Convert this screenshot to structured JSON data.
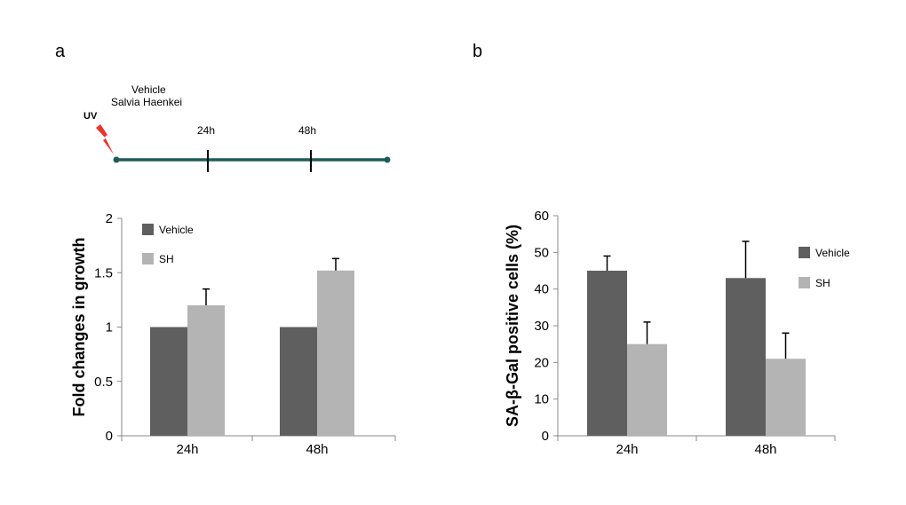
{
  "panels": {
    "a_label": "a",
    "b_label": "b"
  },
  "timeline": {
    "uv_label": "UV",
    "treatment_line1": "Vehicle",
    "treatment_line2": "Salvia  Haenkei",
    "markers": [
      "24h",
      "48h"
    ],
    "line_color": "#1f5c57",
    "bolt_color": "#e8342a"
  },
  "colors": {
    "vehicle": "#5f5f5f",
    "sh": "#b4b4b4",
    "axis": "#888888",
    "error": "#000000"
  },
  "chart_data": [
    {
      "type": "bar",
      "title": "",
      "xlabel": "",
      "ylabel": "Fold changes in growth",
      "categories": [
        "24h",
        "48h"
      ],
      "ylim": [
        0,
        2
      ],
      "yticks": [
        0,
        0.5,
        1,
        1.5,
        2
      ],
      "ytick_labels": [
        "0",
        "0.5",
        "1",
        "1.5",
        "2"
      ],
      "legend_position": "top-left",
      "series": [
        {
          "name": "Vehicle",
          "values": [
            1,
            1
          ],
          "errors": [
            0,
            0
          ]
        },
        {
          "name": "SH",
          "values": [
            1.2,
            1.52
          ],
          "errors": [
            0.15,
            0.11
          ]
        }
      ]
    },
    {
      "type": "bar",
      "title": "",
      "xlabel": "",
      "ylabel": "SA-β-Gal positive cells (%)",
      "categories": [
        "24h",
        "48h"
      ],
      "ylim": [
        0,
        60
      ],
      "yticks": [
        0,
        10,
        20,
        30,
        40,
        50,
        60
      ],
      "ytick_labels": [
        "0",
        "10",
        "20",
        "30",
        "40",
        "50",
        "60"
      ],
      "legend_position": "top-right",
      "series": [
        {
          "name": "Vehicle",
          "values": [
            45,
            43
          ],
          "errors": [
            4,
            10
          ]
        },
        {
          "name": "SH",
          "values": [
            25,
            21
          ],
          "errors": [
            6,
            7
          ]
        }
      ]
    }
  ]
}
